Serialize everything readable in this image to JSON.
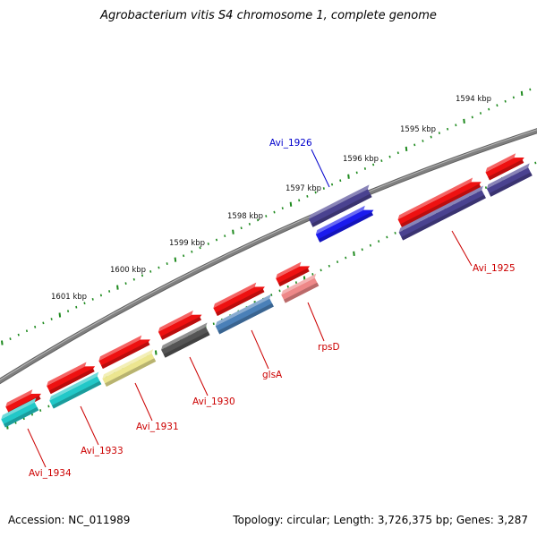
{
  "title": "Agrobacterium vitis S4 chromosome 1, complete genome",
  "footer": {
    "accession": "Accession: NC_011989",
    "summary": "Topology: circular; Length: 3,726,375 bp; Genes: 3,287"
  },
  "colors": {
    "backbone": "#808080",
    "tick": "#1e8a1e",
    "highlight_label": "#0000cc",
    "gene_label": "#cc0000",
    "gene_palette": {
      "red": "#ee1111",
      "navy": "#4a4290",
      "blue": "#1a1aee",
      "cyan": "#22c8c8",
      "khaki": "#ece690",
      "gray": "#555555",
      "steel": "#4a80b8",
      "pink": "#ee8888"
    }
  },
  "scale_ticks": [
    {
      "label": "1594 kbp"
    },
    {
      "label": "1595 kbp"
    },
    {
      "label": "1596 kbp"
    },
    {
      "label": "1597 kbp"
    },
    {
      "label": "1598 kbp"
    },
    {
      "label": "1599 kbp"
    },
    {
      "label": "1600 kbp"
    },
    {
      "label": "1601 kbp"
    }
  ],
  "gene_labels": [
    {
      "name": "Avi_1926",
      "highlight": true
    },
    {
      "name": "Avi_1925",
      "highlight": false
    },
    {
      "name": "rpsD",
      "highlight": false
    },
    {
      "name": "glsA",
      "highlight": false
    },
    {
      "name": "Avi_1930",
      "highlight": false
    },
    {
      "name": "Avi_1931",
      "highlight": false
    },
    {
      "name": "Avi_1933",
      "highlight": false
    },
    {
      "name": "Avi_1934",
      "highlight": false
    }
  ],
  "features": [
    {
      "color": "red"
    },
    {
      "color": "red"
    },
    {
      "color": "red"
    },
    {
      "color": "red"
    },
    {
      "color": "red"
    },
    {
      "color": "red"
    },
    {
      "color": "red"
    },
    {
      "color": "red"
    },
    {
      "color": "navy"
    },
    {
      "color": "navy"
    },
    {
      "color": "navy"
    },
    {
      "color": "blue"
    },
    {
      "color": "pink"
    },
    {
      "color": "steel"
    },
    {
      "color": "gray"
    },
    {
      "color": "khaki"
    },
    {
      "color": "cyan"
    },
    {
      "color": "cyan"
    }
  ]
}
